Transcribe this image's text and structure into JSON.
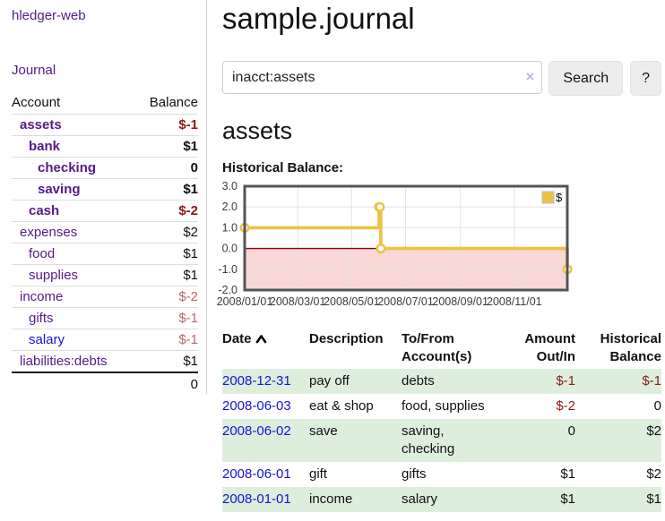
{
  "colors": {
    "purple": "#551a8b",
    "blue": "#1414d6",
    "neg-strong": "#8b1a1a",
    "neg-soft": "#b36a6a",
    "row-green": "#ddeedd",
    "gold": "#edc240",
    "chart-border": "#545454",
    "zero-line": "#8b0000",
    "neg-region": "#f8d7d7",
    "grid": "#e4e4e4",
    "btn-bg": "#ececec",
    "divider": "#ccc",
    "input-border": "#ccc"
  },
  "sidebar": {
    "brand": "hledger-web",
    "journal_link": "Journal",
    "accounts": {
      "headers": {
        "account": "Account",
        "balance": "Balance"
      },
      "rows": [
        {
          "account": "assets",
          "indent": 0,
          "bold": true,
          "balance": "$-1",
          "balance_tone": "neg-strong",
          "link_tone": "purple"
        },
        {
          "account": "bank",
          "indent": 1,
          "bold": true,
          "balance": "$1",
          "balance_tone": "",
          "link_tone": "purple"
        },
        {
          "account": "checking",
          "indent": 2,
          "bold": true,
          "balance": "0",
          "balance_tone": "",
          "link_tone": "purple"
        },
        {
          "account": "saving",
          "indent": 2,
          "bold": true,
          "balance": "$1",
          "balance_tone": "",
          "link_tone": "purple"
        },
        {
          "account": "cash",
          "indent": 1,
          "bold": true,
          "balance": "$-2",
          "balance_tone": "neg-strong",
          "link_tone": "purple"
        },
        {
          "account": "expenses",
          "indent": 0,
          "bold": false,
          "balance": "$2",
          "balance_tone": "",
          "link_tone": "purple"
        },
        {
          "account": "food",
          "indent": 1,
          "bold": false,
          "balance": "$1",
          "balance_tone": "",
          "link_tone": "purple"
        },
        {
          "account": "supplies",
          "indent": 1,
          "bold": false,
          "balance": "$1",
          "balance_tone": "",
          "link_tone": "purple"
        },
        {
          "account": "income",
          "indent": 0,
          "bold": false,
          "balance": "$-2",
          "balance_tone": "neg-soft",
          "link_tone": "purple"
        },
        {
          "account": "gifts",
          "indent": 1,
          "bold": false,
          "balance": "$-1",
          "balance_tone": "neg-soft",
          "link_tone": "purple"
        },
        {
          "account": "salary",
          "indent": 1,
          "bold": false,
          "balance": "$-1",
          "balance_tone": "neg-soft",
          "link_tone": "blue"
        },
        {
          "account": "liabilities:debts",
          "indent": 0,
          "bold": false,
          "balance": "$1",
          "balance_tone": "",
          "link_tone": "purple"
        }
      ],
      "total": "0"
    }
  },
  "main": {
    "title": "sample.journal",
    "search": {
      "value": "inacct:assets",
      "clear_icon": "×",
      "button_label": "Search",
      "help_label": "?"
    },
    "account_heading": "assets",
    "chart_label": "Historical Balance:",
    "register": {
      "headers": {
        "date": "Date",
        "description": "Description",
        "accounts": "To/From Account(s)",
        "amount": "Amount Out/In",
        "balance": "Historical Balance"
      },
      "sort_icon": "chevron-up",
      "rows": [
        {
          "date": "2008-12-31",
          "description": "pay off",
          "accounts": "debts",
          "amount": "$-1",
          "amount_tone": "neg",
          "balance": "$-1",
          "balance_tone": "neg"
        },
        {
          "date": "2008-06-03",
          "description": "eat & shop",
          "accounts": "food, supplies",
          "amount": "$-2",
          "amount_tone": "neg",
          "balance": "0",
          "balance_tone": ""
        },
        {
          "date": "2008-06-02",
          "description": "save",
          "accounts": "saving, checking",
          "amount": "0",
          "amount_tone": "",
          "balance": "$2",
          "balance_tone": ""
        },
        {
          "date": "2008-06-01",
          "description": "gift",
          "accounts": "gifts",
          "amount": "$1",
          "amount_tone": "",
          "balance": "$2",
          "balance_tone": ""
        },
        {
          "date": "2008-01-01",
          "description": "income",
          "accounts": "salary",
          "amount": "$1",
          "amount_tone": "",
          "balance": "$1",
          "balance_tone": ""
        }
      ]
    }
  },
  "chart_data": {
    "type": "line",
    "title": "Historical Balance:",
    "steps": true,
    "series": [
      {
        "name": "$",
        "color": "#edc240",
        "points": [
          [
            "2008-01-01",
            1
          ],
          [
            "2008-06-01",
            2
          ],
          [
            "2008-06-02",
            2
          ],
          [
            "2008-06-03",
            0
          ],
          [
            "2008-12-31",
            -1
          ]
        ]
      }
    ],
    "xlim": [
      "2008-01-01",
      "2008-12-31"
    ],
    "ylim": [
      -2,
      3
    ],
    "yticks": [
      3,
      2,
      1,
      0,
      -1,
      -2
    ],
    "xticks": [
      {
        "date": "2008-01-01",
        "label": "2008/01/01"
      },
      {
        "date": "2008-03-01",
        "label": "2008/03/01"
      },
      {
        "date": "2008-05-01",
        "label": "2008/05/01"
      },
      {
        "date": "2008-07-01",
        "label": "2008/07/01"
      },
      {
        "date": "2008-09-01",
        "label": "2008/09/01"
      },
      {
        "date": "2008-11-01",
        "label": "2008/11/01"
      }
    ],
    "zero_line_color": "#8b0000",
    "negative_region_color": "#f8d7d7",
    "grid": true,
    "legend_position": "top-right"
  }
}
